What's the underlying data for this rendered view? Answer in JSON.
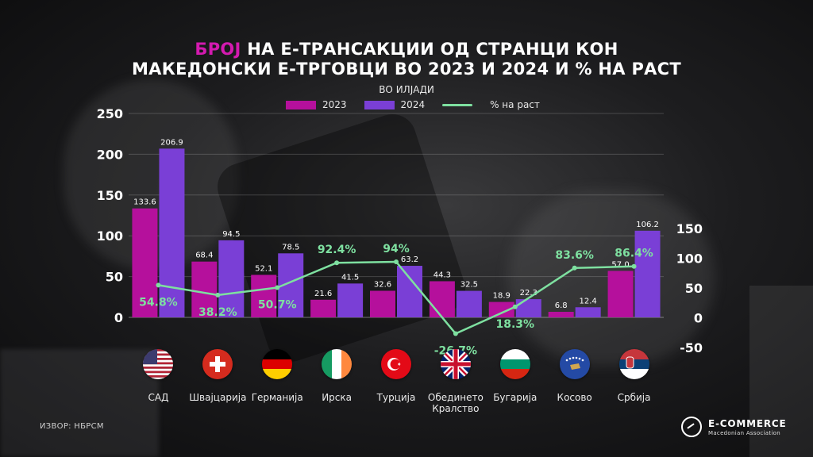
{
  "title": {
    "line1_accent": "БРОЈ",
    "line1_rest": " НА Е-ТРАНСАКЦИИ ОД СТРАНЦИ КОН",
    "line2": "МАКЕДОНСКИ Е-ТРГОВЦИ ВО 2023 И 2024 И % НА РАСТ"
  },
  "unit_label": "ВО ИЛЈАДИ",
  "source": "ИЗВОР: НБРСМ",
  "logo": {
    "name": "E-COMMERCE",
    "subtitle": "Macedonian Association"
  },
  "colors": {
    "series_2023": "#b5109c",
    "series_2024": "#7a3fd6",
    "growth": "#7ee0a0",
    "accent": "#d41ab0"
  },
  "chart_data": {
    "type": "bar",
    "categories": [
      "САД",
      "Швајцарија",
      "Германија",
      "Ирска",
      "Турција",
      "Обединето\nКралство",
      "Бугарија",
      "Косово",
      "Србија"
    ],
    "series": [
      {
        "name": "2023",
        "values": [
          133.6,
          68.4,
          52.1,
          21.6,
          32.6,
          44.3,
          18.9,
          6.8,
          57.0
        ],
        "labels": [
          "133.6",
          "68.4",
          "52.1",
          "21.6",
          "32.6",
          "44.3",
          "18.9",
          "6.8",
          "57.0"
        ]
      },
      {
        "name": "2024",
        "values": [
          206.9,
          94.5,
          78.5,
          41.5,
          63.2,
          32.5,
          22.3,
          12.4,
          106.2
        ],
        "labels": [
          "206.9",
          "94.5",
          "78.5",
          "41.5",
          "63.2",
          "32.5",
          "22.3",
          "12.4",
          "106.2"
        ]
      }
    ],
    "line_series": {
      "name": "% на раст",
      "type": "line",
      "axis": "right",
      "values": [
        54.8,
        38.2,
        50.7,
        92.4,
        94,
        -26.7,
        18.3,
        83.6,
        86.4
      ],
      "labels": [
        "54.8%",
        "38.2%",
        "50.7%",
        "92.4%",
        "94%",
        "-26.7%",
        "18.3%",
        "83.6%",
        "86.4%"
      ]
    },
    "y_left": {
      "ylim": [
        0,
        250
      ],
      "ticks": [
        "0",
        "50",
        "100",
        "150",
        "200",
        "250"
      ],
      "tick_values": [
        0,
        50,
        100,
        150,
        200,
        250
      ]
    },
    "y_right": {
      "ylim": [
        -50,
        150
      ],
      "ticks": [
        "-50",
        "0",
        "50",
        "100",
        "150"
      ],
      "tick_values": [
        -50,
        0,
        50,
        100,
        150
      ]
    },
    "grid": true,
    "legend": "top-center"
  },
  "flags": [
    "us-flag-icon",
    "ch-flag-icon",
    "de-flag-icon",
    "ie-flag-icon",
    "tr-flag-icon",
    "gb-flag-icon",
    "bg-flag-icon",
    "xk-flag-icon",
    "rs-flag-icon"
  ]
}
